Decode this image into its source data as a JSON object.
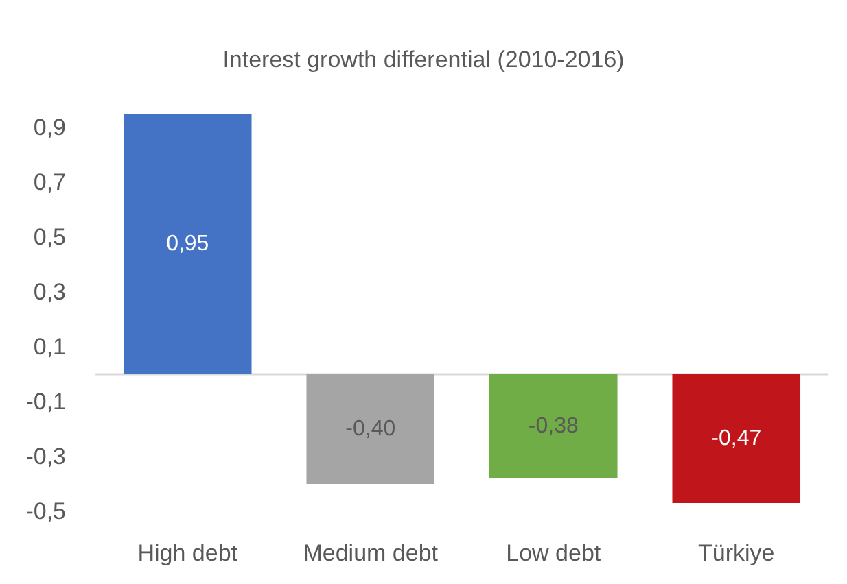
{
  "chart_data": {
    "type": "bar",
    "title": "Interest growth differential (2010-2016)",
    "categories": [
      "High debt",
      "Medium debt",
      "Low debt",
      "Türkiye"
    ],
    "values": [
      0.95,
      -0.4,
      -0.38,
      -0.47
    ],
    "colors": [
      "#4472c4",
      "#a5a5a5",
      "#70ad47",
      "#c0161b"
    ],
    "value_labels": [
      "0,95",
      "-0,40",
      "-0,38",
      "-0,47"
    ],
    "ylim": [
      -0.5,
      0.95
    ],
    "yticks": [
      {
        "value": -0.5,
        "label": "-0,5"
      },
      {
        "value": -0.3,
        "label": "-0,3"
      },
      {
        "value": -0.1,
        "label": "-0,1"
      },
      {
        "value": 0.1,
        "label": "0,1"
      },
      {
        "value": 0.3,
        "label": "0,3"
      },
      {
        "value": 0.5,
        "label": "0,5"
      },
      {
        "value": 0.7,
        "label": "0,7"
      },
      {
        "value": 0.9,
        "label": "0,9"
      }
    ],
    "grid": false
  }
}
